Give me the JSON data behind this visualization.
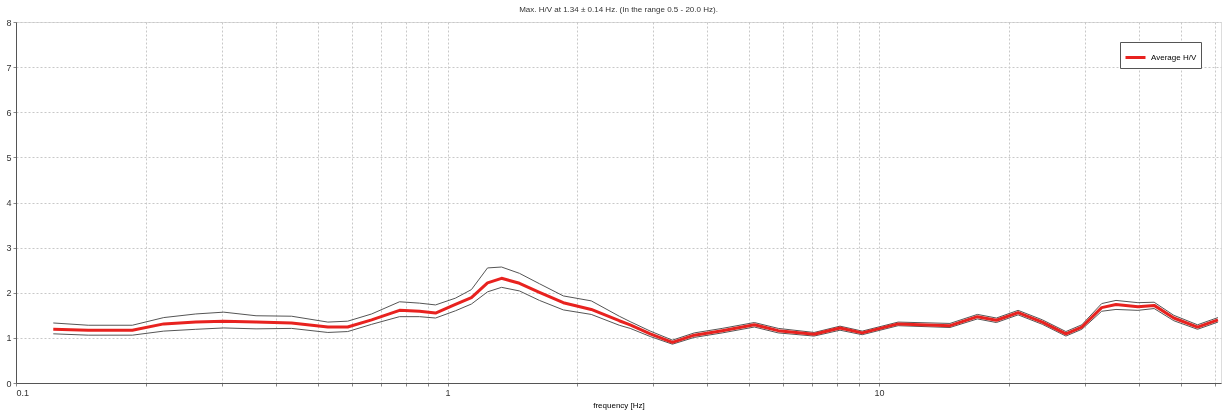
{
  "chart_data": {
    "type": "line",
    "title": "Max. H/V at 1.34 ± 0.14 Hz. (In the range 0.5 - 20.0 Hz).",
    "xlabel": "frequency [Hz]",
    "x": [
      0.122,
      0.147,
      0.186,
      0.22,
      0.261,
      0.303,
      0.36,
      0.435,
      0.528,
      0.587,
      0.667,
      0.774,
      0.861,
      0.938,
      1.043,
      1.136,
      1.238,
      1.334,
      1.468,
      1.633,
      1.855,
      2.153,
      2.5,
      2.65,
      2.95,
      3.32,
      3.73,
      4.33,
      5.14,
      5.84,
      7.07,
      8.12,
      9.14,
      11.07,
      14.6,
      16.9,
      18.7,
      21.0,
      23.9,
      27.1,
      29.5,
      32.8,
      35.4,
      39.8,
      43.4,
      48.2,
      54.7,
      61
    ],
    "series": [
      {
        "name": "Average H/V",
        "color": "#e8221f",
        "values": [
          1.19,
          1.17,
          1.17,
          1.31,
          1.35,
          1.37,
          1.35,
          1.33,
          1.24,
          1.24,
          1.4,
          1.61,
          1.59,
          1.55,
          1.74,
          1.89,
          2.22,
          2.32,
          2.21,
          2.01,
          1.78,
          1.63,
          1.38,
          1.29,
          1.09,
          0.9,
          1.06,
          1.16,
          1.29,
          1.16,
          1.08,
          1.22,
          1.11,
          1.31,
          1.27,
          1.47,
          1.39,
          1.56,
          1.35,
          1.09,
          1.24,
          1.67,
          1.74,
          1.69,
          1.72,
          1.44,
          1.24,
          1.4
        ]
      },
      {
        "color": "#555555",
        "values": [
          1.33,
          1.28,
          1.28,
          1.45,
          1.53,
          1.57,
          1.49,
          1.48,
          1.35,
          1.37,
          1.53,
          1.8,
          1.77,
          1.73,
          1.88,
          2.07,
          2.55,
          2.57,
          2.43,
          2.2,
          1.93,
          1.82,
          1.48,
          1.36,
          1.15,
          0.95,
          1.11,
          1.21,
          1.34,
          1.21,
          1.12,
          1.26,
          1.15,
          1.35,
          1.32,
          1.52,
          1.44,
          1.61,
          1.4,
          1.14,
          1.29,
          1.76,
          1.83,
          1.78,
          1.79,
          1.5,
          1.29,
          1.45
        ]
      },
      {
        "color": "#555555",
        "values": [
          1.09,
          1.06,
          1.06,
          1.15,
          1.19,
          1.22,
          1.2,
          1.21,
          1.12,
          1.14,
          1.3,
          1.47,
          1.47,
          1.44,
          1.6,
          1.75,
          2.02,
          2.12,
          2.04,
          1.83,
          1.62,
          1.52,
          1.28,
          1.21,
          1.03,
          0.86,
          1.01,
          1.11,
          1.24,
          1.11,
          1.04,
          1.17,
          1.07,
          1.27,
          1.23,
          1.42,
          1.34,
          1.51,
          1.3,
          1.04,
          1.19,
          1.59,
          1.63,
          1.61,
          1.65,
          1.38,
          1.19,
          1.35
        ]
      }
    ],
    "xlim": [
      0.1,
      62
    ],
    "ylim": [
      0,
      8
    ],
    "xticks": [
      0.1,
      {
        "value": 0.2,
        "label": null
      },
      {
        "value": 0.3,
        "label": null
      },
      {
        "value": 0.4,
        "label": null
      },
      {
        "value": 0.5,
        "label": null
      },
      {
        "value": 0.6,
        "label": null
      },
      {
        "value": 0.7,
        "label": null
      },
      {
        "value": 0.8,
        "label": null
      },
      {
        "value": 0.9,
        "label": null
      },
      1,
      {
        "value": 2,
        "label": null
      },
      {
        "value": 3,
        "label": null
      },
      {
        "value": 4,
        "label": null
      },
      {
        "value": 5,
        "label": null
      },
      {
        "value": 6,
        "label": null
      },
      {
        "value": 7,
        "label": null
      },
      {
        "value": 8,
        "label": null
      },
      {
        "value": 9,
        "label": null
      },
      10,
      {
        "value": 20,
        "label": null
      },
      {
        "value": 30,
        "label": null
      },
      {
        "value": 40,
        "label": null
      },
      {
        "value": 50,
        "label": null
      },
      {
        "value": 60,
        "label": null
      }
    ],
    "yticks": [
      0,
      1,
      2,
      3,
      4,
      5,
      6,
      7,
      8
    ],
    "log": "x",
    "grid": true,
    "legend": "top right",
    "line_style": "solid",
    "marker": "none"
  }
}
